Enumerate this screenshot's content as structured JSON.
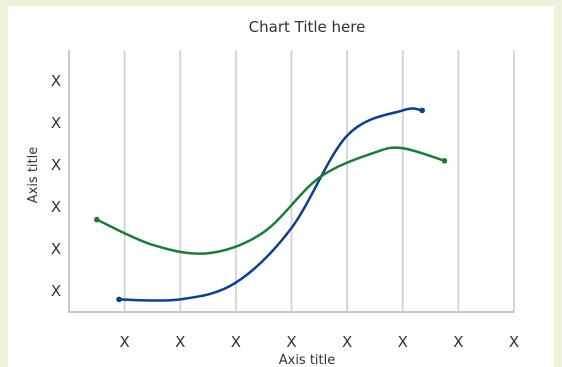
{
  "chart_data": {
    "type": "line",
    "title": "Chart Title here",
    "xlabel": "Axis title",
    "ylabel": "Axis title",
    "x_ticks": [
      "X",
      "X",
      "X",
      "X",
      "X",
      "X",
      "X",
      "X"
    ],
    "y_ticks": [
      "X",
      "X",
      "X",
      "X",
      "X",
      "X"
    ],
    "grid": "vertical",
    "series": [
      {
        "color": "#0e3f8c",
        "points": [
          [
            0.9,
            0.3
          ],
          [
            2,
            0.3
          ],
          [
            3,
            0.7
          ],
          [
            4,
            2.0
          ],
          [
            5,
            4.2
          ],
          [
            6,
            4.8
          ],
          [
            6.35,
            4.8
          ]
        ]
      },
      {
        "color": "#1f7a3a",
        "points": [
          [
            0.5,
            2.2
          ],
          [
            1.5,
            1.6
          ],
          [
            2.5,
            1.4
          ],
          [
            3.5,
            1.9
          ],
          [
            4.5,
            3.2
          ],
          [
            5.5,
            3.8
          ],
          [
            6,
            3.9
          ],
          [
            6.75,
            3.6
          ]
        ]
      }
    ],
    "xlim": [
      0,
      8
    ],
    "ylim": [
      0,
      6
    ]
  }
}
